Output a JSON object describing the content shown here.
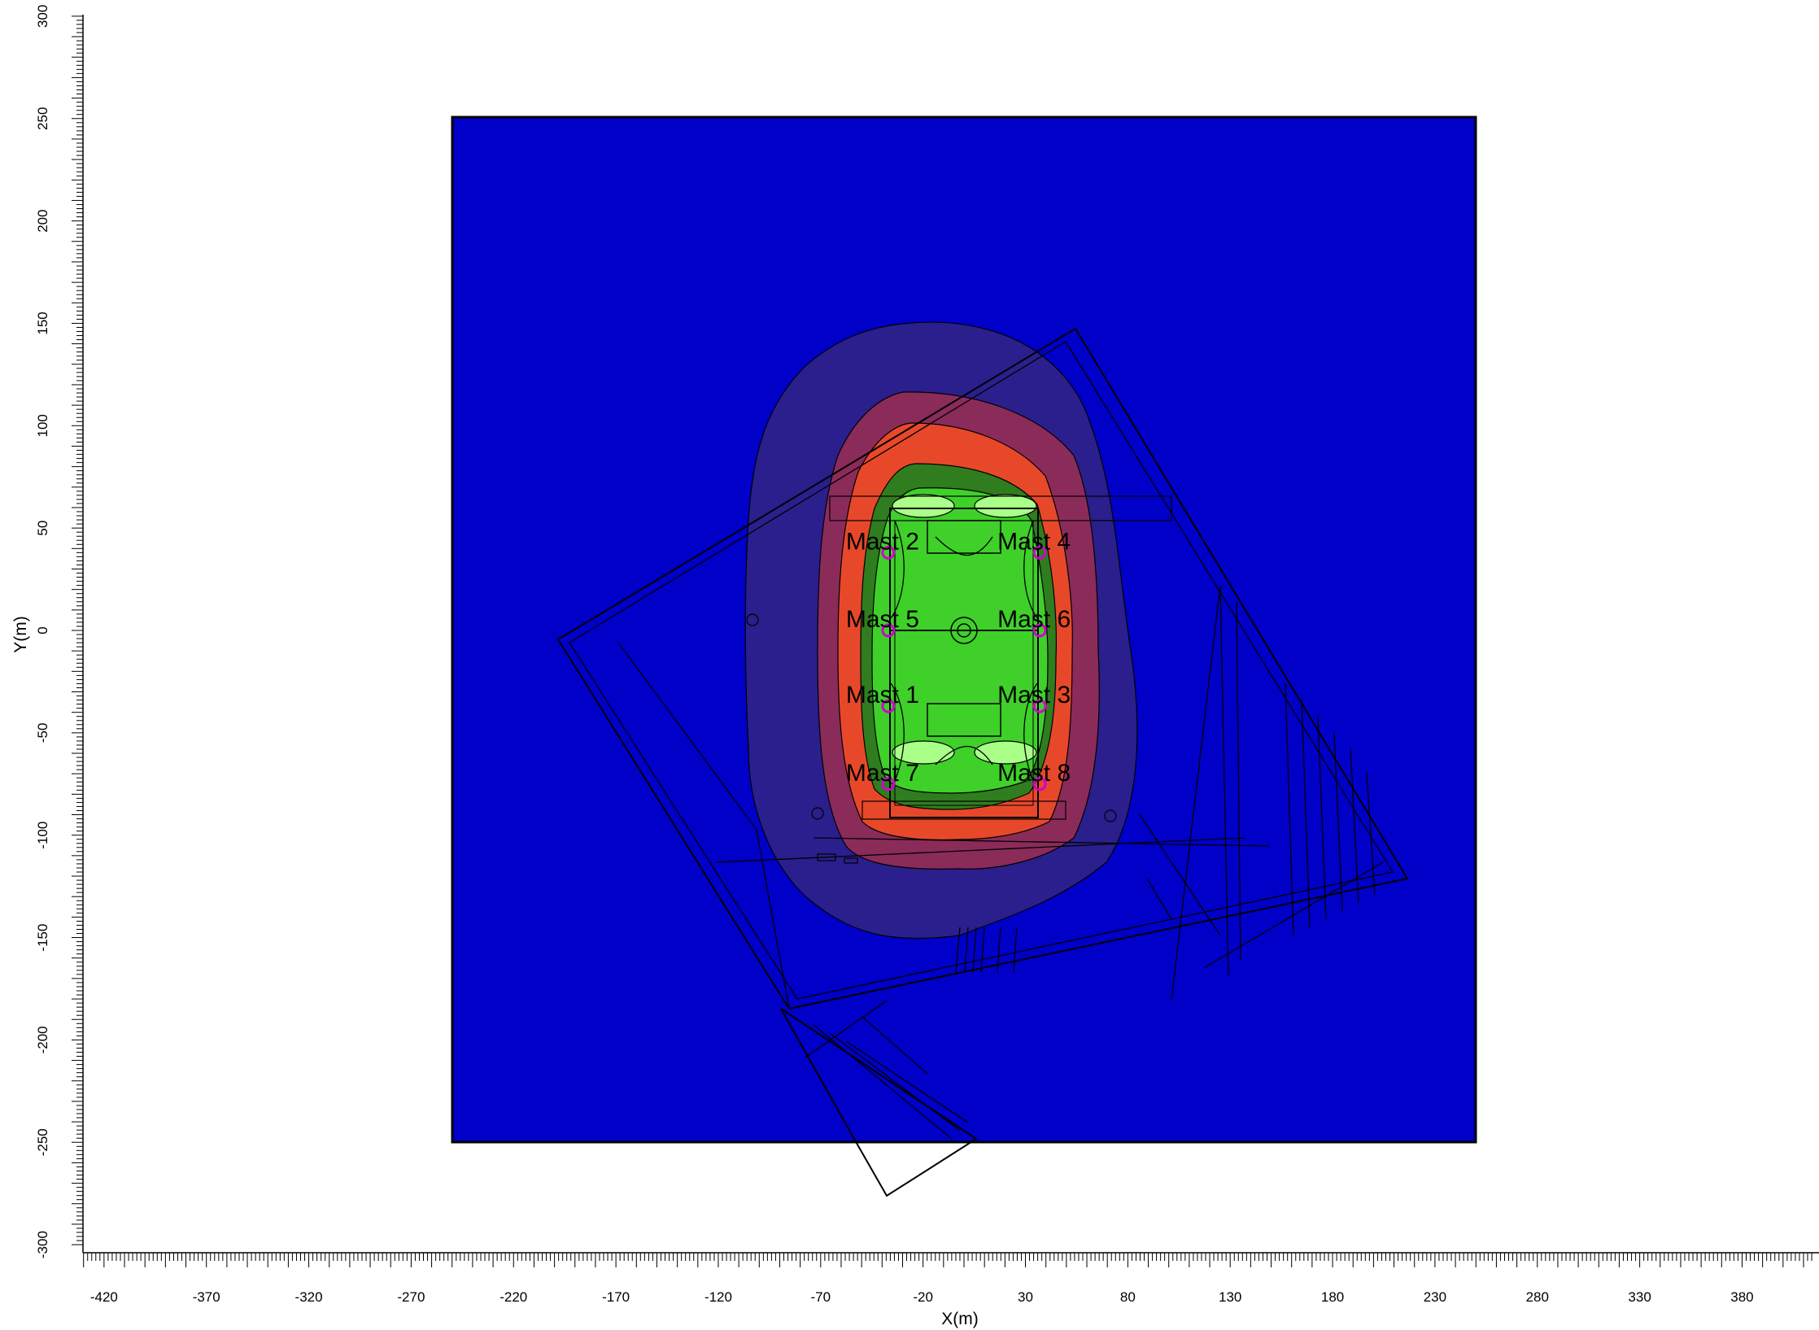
{
  "axes": {
    "x_label": "X(m)",
    "y_label": "Y(m)",
    "x_ticks": [
      -420,
      -370,
      -320,
      -270,
      -220,
      -170,
      -120,
      -70,
      -20,
      30,
      80,
      130,
      180,
      230,
      280,
      330,
      380
    ],
    "y_ticks": [
      300,
      250,
      200,
      150,
      100,
      50,
      0,
      -50,
      -100,
      -150,
      -200,
      -250,
      -300
    ],
    "x_range": [
      -430,
      410
    ],
    "y_range": [
      -305,
      300
    ]
  },
  "calc_grid": {
    "x": [
      -250,
      250
    ],
    "y": [
      -250,
      250
    ]
  },
  "masts": [
    {
      "name": "Mast 2",
      "x": -37,
      "y": 38
    },
    {
      "name": "Mast 4",
      "x": 37,
      "y": 38
    },
    {
      "name": "Mast 5",
      "x": -37,
      "y": 0
    },
    {
      "name": "Mast 6",
      "x": 37,
      "y": 0
    },
    {
      "name": "Mast 1",
      "x": -37,
      "y": -37
    },
    {
      "name": "Mast 3",
      "x": 37,
      "y": -37
    },
    {
      "name": "Mast 7",
      "x": -37,
      "y": -75
    },
    {
      "name": "Mast 8",
      "x": 37,
      "y": -75
    }
  ],
  "colors": {
    "background_field": "#0000c8",
    "contour_low": "#2a1f8c",
    "contour_mid": "#8b2b5a",
    "contour_orange": "#e8482a",
    "contour_green_dark": "#2f7d1e",
    "contour_green": "#3fd02a",
    "contour_green_light": "#aaff88",
    "mast_marker": "#d000d0"
  }
}
